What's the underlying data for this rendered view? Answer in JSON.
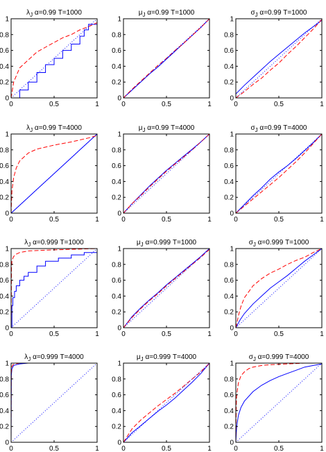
{
  "colors": {
    "solid_series": "#0000ff",
    "dashed_series": "#ff0000",
    "reference_line": "#0000ff",
    "axes": "#000000"
  },
  "chart_data": [
    {
      "type": "line",
      "title": "λ_J  α=0.99  T=1000",
      "xlim": [
        0,
        1
      ],
      "ylim": [
        0,
        1
      ],
      "xticks": [
        "0",
        "0.5",
        "1"
      ],
      "yticks": [
        "0",
        "0.2",
        "0.4",
        "0.6",
        "0.8",
        "1"
      ],
      "series": [
        {
          "style": "solid",
          "step": true,
          "x": [
            0,
            0.1,
            0.2,
            0.3,
            0.4,
            0.5,
            0.6,
            0.7,
            0.8,
            0.85,
            0.9,
            1
          ],
          "y": [
            0,
            0.1,
            0.2,
            0.32,
            0.42,
            0.5,
            0.6,
            0.68,
            0.78,
            0.86,
            0.93,
            0.97
          ]
        },
        {
          "style": "dashed",
          "x": [
            0,
            0.03,
            0.1,
            0.2,
            0.3,
            0.4,
            0.5,
            0.6,
            0.7,
            0.8,
            0.9,
            1
          ],
          "y": [
            0,
            0.2,
            0.38,
            0.48,
            0.58,
            0.64,
            0.7,
            0.76,
            0.8,
            0.86,
            0.9,
            0.95
          ]
        },
        {
          "style": "dotted",
          "x": [
            0,
            1
          ],
          "y": [
            0,
            1
          ]
        }
      ]
    },
    {
      "type": "line",
      "title": "μ_J  α=0.99  T=1000",
      "xlim": [
        0,
        1
      ],
      "ylim": [
        0,
        1
      ],
      "xticks": [
        "0",
        "0.5",
        "1"
      ],
      "yticks": [
        "0",
        "0.2",
        "0.4",
        "0.6",
        "0.8",
        "1"
      ],
      "series": [
        {
          "style": "solid",
          "x": [
            0,
            0.1,
            0.2,
            0.3,
            0.4,
            0.5,
            0.6,
            0.7,
            0.8,
            0.9,
            1
          ],
          "y": [
            0,
            0.1,
            0.2,
            0.3,
            0.39,
            0.49,
            0.59,
            0.69,
            0.79,
            0.89,
            1
          ]
        },
        {
          "style": "dashed",
          "x": [
            0,
            0.1,
            0.2,
            0.3,
            0.4,
            0.5,
            0.6,
            0.7,
            0.8,
            0.9,
            1
          ],
          "y": [
            0,
            0.11,
            0.21,
            0.31,
            0.41,
            0.5,
            0.6,
            0.69,
            0.79,
            0.89,
            1
          ]
        },
        {
          "style": "dotted",
          "x": [
            0,
            1
          ],
          "y": [
            0,
            1
          ]
        }
      ]
    },
    {
      "type": "line",
      "title": "σ_J  α=0.99  T=1000",
      "xlim": [
        0,
        1
      ],
      "ylim": [
        0,
        1
      ],
      "xticks": [
        "0",
        "0.5",
        "1"
      ],
      "yticks": [
        "0",
        "0.2",
        "0.4",
        "0.6",
        "0.8",
        "1"
      ],
      "series": [
        {
          "style": "solid",
          "x": [
            0,
            0.1,
            0.2,
            0.3,
            0.4,
            0.5,
            0.6,
            0.7,
            0.8,
            0.9,
            1
          ],
          "y": [
            0.05,
            0.16,
            0.26,
            0.36,
            0.46,
            0.55,
            0.64,
            0.73,
            0.82,
            0.9,
            0.98
          ]
        },
        {
          "style": "dashed",
          "x": [
            0,
            0.1,
            0.2,
            0.3,
            0.4,
            0.5,
            0.6,
            0.7,
            0.8,
            0.9,
            1
          ],
          "y": [
            0,
            0.08,
            0.17,
            0.25,
            0.35,
            0.44,
            0.55,
            0.65,
            0.76,
            0.87,
            0.99
          ]
        },
        {
          "style": "dotted",
          "x": [
            0,
            1
          ],
          "y": [
            0,
            1
          ]
        }
      ]
    },
    {
      "type": "line",
      "title": "λ_J  α=0.99  T=4000",
      "xlim": [
        0,
        1
      ],
      "ylim": [
        0,
        1
      ],
      "xticks": [
        "0",
        "0.5",
        "1"
      ],
      "yticks": [
        "0",
        "0.2",
        "0.4",
        "0.6",
        "0.8",
        "1"
      ],
      "series": [
        {
          "style": "solid",
          "x": [
            0,
            0.1,
            0.2,
            0.3,
            0.4,
            0.5,
            0.6,
            0.7,
            0.8,
            0.9,
            1
          ],
          "y": [
            0,
            0.1,
            0.2,
            0.3,
            0.4,
            0.5,
            0.6,
            0.7,
            0.8,
            0.9,
            1
          ]
        },
        {
          "style": "dashed",
          "x": [
            0,
            0.01,
            0.03,
            0.06,
            0.1,
            0.2,
            0.3,
            0.5,
            0.7,
            0.9,
            1
          ],
          "y": [
            0,
            0.28,
            0.45,
            0.57,
            0.66,
            0.76,
            0.81,
            0.86,
            0.9,
            0.95,
            0.98
          ]
        },
        {
          "style": "dotted",
          "x": [
            0,
            1
          ],
          "y": [
            0,
            1
          ]
        }
      ]
    },
    {
      "type": "line",
      "title": "μ_J  α=0.99  T=4000",
      "xlim": [
        0,
        1
      ],
      "ylim": [
        0,
        1
      ],
      "xticks": [
        "0",
        "0.5",
        "1"
      ],
      "yticks": [
        "0",
        "0.2",
        "0.4",
        "0.6",
        "0.8",
        "1"
      ],
      "series": [
        {
          "style": "solid",
          "x": [
            0,
            0.1,
            0.2,
            0.3,
            0.4,
            0.5,
            0.6,
            0.7,
            0.8,
            0.9,
            1
          ],
          "y": [
            0,
            0.12,
            0.23,
            0.34,
            0.44,
            0.54,
            0.63,
            0.72,
            0.81,
            0.9,
            1
          ]
        },
        {
          "style": "dashed",
          "x": [
            0,
            0.1,
            0.2,
            0.3,
            0.4,
            0.5,
            0.6,
            0.7,
            0.8,
            0.9,
            1
          ],
          "y": [
            0,
            0.12,
            0.22,
            0.33,
            0.43,
            0.53,
            0.62,
            0.71,
            0.8,
            0.9,
            1
          ]
        },
        {
          "style": "dotted",
          "x": [
            0,
            1
          ],
          "y": [
            0,
            1
          ]
        }
      ]
    },
    {
      "type": "line",
      "title": "σ_J  α=0.99  T=4000",
      "xlim": [
        0,
        1
      ],
      "ylim": [
        0,
        1
      ],
      "xticks": [
        "0",
        "0.5",
        "1"
      ],
      "yticks": [
        "0",
        "0.2",
        "0.4",
        "0.6",
        "0.8",
        "1"
      ],
      "series": [
        {
          "style": "solid",
          "x": [
            0,
            0.1,
            0.2,
            0.3,
            0.4,
            0.5,
            0.6,
            0.7,
            0.8,
            0.9,
            1
          ],
          "y": [
            0,
            0.11,
            0.22,
            0.32,
            0.43,
            0.52,
            0.6,
            0.69,
            0.79,
            0.89,
            1
          ]
        },
        {
          "style": "dashed",
          "x": [
            0,
            0.1,
            0.2,
            0.3,
            0.4,
            0.5,
            0.6,
            0.7,
            0.8,
            0.9,
            1
          ],
          "y": [
            0,
            0.09,
            0.18,
            0.27,
            0.36,
            0.45,
            0.55,
            0.65,
            0.76,
            0.88,
            1
          ]
        },
        {
          "style": "dotted",
          "x": [
            0,
            1
          ],
          "y": [
            0,
            1
          ]
        }
      ]
    },
    {
      "type": "line",
      "title": "λ_J  α=0.999  T=1000",
      "xlim": [
        0,
        1
      ],
      "ylim": [
        0,
        1
      ],
      "xticks": [
        "0",
        "0.5",
        "1"
      ],
      "yticks": [
        "0",
        "0.2",
        "0.4",
        "0.6",
        "0.8",
        "1"
      ],
      "series": [
        {
          "style": "solid",
          "step": true,
          "x": [
            0,
            0.01,
            0.02,
            0.04,
            0.06,
            0.1,
            0.15,
            0.2,
            0.3,
            0.4,
            0.55,
            0.7,
            0.85,
            1
          ],
          "y": [
            0,
            0.28,
            0.38,
            0.46,
            0.53,
            0.6,
            0.65,
            0.7,
            0.78,
            0.84,
            0.88,
            0.92,
            0.95,
            0.97
          ]
        },
        {
          "style": "dashed",
          "x": [
            0,
            0.005,
            0.01,
            0.03,
            0.06,
            0.1,
            0.2,
            0.4,
            0.7,
            1
          ],
          "y": [
            0,
            0.75,
            0.85,
            0.9,
            0.93,
            0.95,
            0.97,
            0.98,
            0.99,
            1
          ]
        },
        {
          "style": "dotted",
          "x": [
            0,
            1
          ],
          "y": [
            0,
            1
          ]
        }
      ]
    },
    {
      "type": "line",
      "title": "μ_J  α=0.999  T=1000",
      "xlim": [
        0,
        1
      ],
      "ylim": [
        0,
        1
      ],
      "xticks": [
        "0",
        "0.5",
        "1"
      ],
      "yticks": [
        "0",
        "0.2",
        "0.4",
        "0.6",
        "0.8",
        "1"
      ],
      "series": [
        {
          "style": "solid",
          "x": [
            0,
            0.1,
            0.2,
            0.3,
            0.4,
            0.5,
            0.6,
            0.7,
            0.8,
            0.9,
            1
          ],
          "y": [
            0,
            0.14,
            0.25,
            0.35,
            0.44,
            0.54,
            0.63,
            0.72,
            0.81,
            0.9,
            1
          ]
        },
        {
          "style": "dashed",
          "x": [
            0,
            0.1,
            0.2,
            0.3,
            0.4,
            0.5,
            0.6,
            0.7,
            0.8,
            0.9,
            1
          ],
          "y": [
            0,
            0.13,
            0.24,
            0.34,
            0.43,
            0.53,
            0.62,
            0.71,
            0.8,
            0.89,
            0.99
          ]
        },
        {
          "style": "dotted",
          "x": [
            0,
            1
          ],
          "y": [
            0,
            1
          ]
        }
      ]
    },
    {
      "type": "line",
      "title": "σ_J  α=0.999  T=1000",
      "xlim": [
        0,
        1
      ],
      "ylim": [
        0,
        1
      ],
      "xticks": [
        "0",
        "0.5",
        "1"
      ],
      "yticks": [
        "0",
        "0.2",
        "0.4",
        "0.6",
        "0.8",
        "1"
      ],
      "series": [
        {
          "style": "solid",
          "x": [
            0,
            0.05,
            0.1,
            0.2,
            0.3,
            0.4,
            0.5,
            0.6,
            0.7,
            0.8,
            0.9,
            1
          ],
          "y": [
            0,
            0.1,
            0.18,
            0.3,
            0.4,
            0.5,
            0.58,
            0.66,
            0.75,
            0.84,
            0.92,
            1
          ]
        },
        {
          "style": "dashed",
          "x": [
            0,
            0.03,
            0.06,
            0.1,
            0.2,
            0.3,
            0.4,
            0.5,
            0.6,
            0.7,
            0.8,
            0.9,
            1
          ],
          "y": [
            0,
            0.15,
            0.27,
            0.38,
            0.53,
            0.62,
            0.69,
            0.74,
            0.8,
            0.85,
            0.89,
            0.95,
            1
          ]
        },
        {
          "style": "dotted",
          "x": [
            0,
            1
          ],
          "y": [
            0,
            1
          ]
        }
      ]
    },
    {
      "type": "line",
      "title": "λ_J  α=0.999  T=4000",
      "xlim": [
        0,
        1
      ],
      "ylim": [
        0,
        1
      ],
      "xticks": [
        "0",
        "0.5",
        "1"
      ],
      "yticks": [
        "0",
        "0.2",
        "0.4",
        "0.6",
        "0.8",
        "1"
      ],
      "series": [
        {
          "style": "solid",
          "x": [
            0,
            0.003,
            0.01,
            0.03,
            0.06,
            0.1,
            0.2,
            0.5,
            1
          ],
          "y": [
            0,
            0.85,
            0.93,
            0.97,
            0.98,
            0.99,
            1,
            1,
            1
          ]
        },
        {
          "style": "dashed",
          "x": [
            0,
            0.002,
            0.008,
            0.02,
            0.05,
            0.1,
            0.3,
            1
          ],
          "y": [
            0,
            0.88,
            0.95,
            0.98,
            0.99,
            1,
            1,
            1
          ]
        },
        {
          "style": "dotted",
          "x": [
            0,
            1
          ],
          "y": [
            0,
            1
          ]
        }
      ]
    },
    {
      "type": "line",
      "title": "μ_J  α=0.999  T=4000",
      "xlim": [
        0,
        1
      ],
      "ylim": [
        0,
        1
      ],
      "xticks": [
        "0",
        "0.5",
        "1"
      ],
      "yticks": [
        "0",
        "0.2",
        "0.4",
        "0.6",
        "0.8",
        "1"
      ],
      "series": [
        {
          "style": "solid",
          "x": [
            0,
            0.1,
            0.2,
            0.3,
            0.4,
            0.5,
            0.6,
            0.7,
            0.8,
            0.9,
            1
          ],
          "y": [
            0,
            0.12,
            0.21,
            0.3,
            0.39,
            0.47,
            0.56,
            0.66,
            0.76,
            0.87,
            1
          ]
        },
        {
          "style": "dashed",
          "x": [
            0,
            0.1,
            0.2,
            0.3,
            0.4,
            0.5,
            0.6,
            0.7,
            0.8,
            0.9,
            1
          ],
          "y": [
            0,
            0.17,
            0.28,
            0.37,
            0.46,
            0.54,
            0.62,
            0.71,
            0.8,
            0.89,
            1
          ]
        },
        {
          "style": "dotted",
          "x": [
            0,
            1
          ],
          "y": [
            0,
            1
          ]
        }
      ]
    },
    {
      "type": "line",
      "title": "σ_J  α=0.999  T=4000",
      "xlim": [
        0,
        1
      ],
      "ylim": [
        0,
        1
      ],
      "xticks": [
        "0",
        "0.5",
        "1"
      ],
      "yticks": [
        "0",
        "0.2",
        "0.4",
        "0.6",
        "0.8",
        "1"
      ],
      "series": [
        {
          "style": "solid",
          "x": [
            0,
            0.01,
            0.03,
            0.06,
            0.1,
            0.2,
            0.3,
            0.4,
            0.5,
            0.6,
            0.7,
            0.8,
            0.9,
            1
          ],
          "y": [
            0,
            0.2,
            0.34,
            0.44,
            0.52,
            0.64,
            0.72,
            0.78,
            0.83,
            0.87,
            0.91,
            0.95,
            0.97,
            0.99
          ]
        },
        {
          "style": "dashed",
          "x": [
            0,
            0.005,
            0.01,
            0.03,
            0.06,
            0.1,
            0.15,
            0.2,
            0.3,
            0.4,
            0.6,
            0.8,
            1
          ],
          "y": [
            0,
            0.45,
            0.6,
            0.75,
            0.84,
            0.89,
            0.93,
            0.95,
            0.97,
            0.98,
            0.99,
            1,
            1
          ]
        },
        {
          "style": "dotted",
          "x": [
            0,
            1
          ],
          "y": [
            0,
            1
          ]
        }
      ]
    }
  ]
}
